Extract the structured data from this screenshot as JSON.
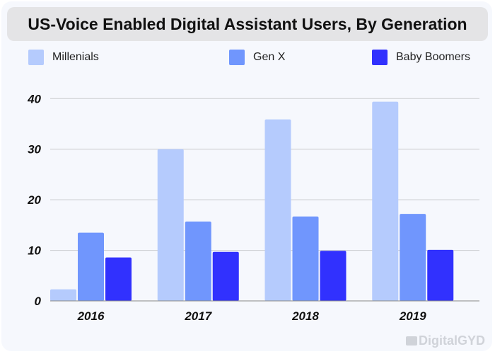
{
  "chart_data": {
    "type": "bar",
    "title": "US-Voice Enabled Digital Assistant Users, By Generation",
    "categories": [
      "2016",
      "2017",
      "2018",
      "2019"
    ],
    "series": [
      {
        "name": "Millenials",
        "color": "#b5cbfd",
        "values": [
          2.3,
          30.0,
          35.9,
          39.4
        ]
      },
      {
        "name": "Gen X",
        "color": "#7096fd",
        "values": [
          13.5,
          15.7,
          16.7,
          17.2
        ]
      },
      {
        "name": "Baby Boomers",
        "color": "#3131fe",
        "values": [
          8.6,
          9.7,
          9.9,
          10.1
        ]
      }
    ],
    "yticks": [
      "0",
      "10",
      "20",
      "30",
      "40"
    ],
    "ylim": [
      0,
      40
    ],
    "grid": true,
    "legend": "top"
  },
  "watermark": "DigitalGYD"
}
